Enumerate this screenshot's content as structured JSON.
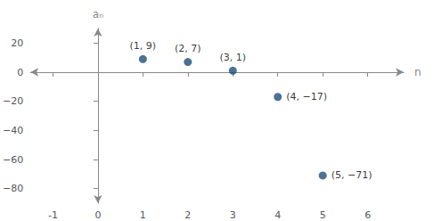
{
  "chart_data": {
    "type": "scatter",
    "x": [
      1,
      2,
      3,
      4,
      5
    ],
    "values": [
      9,
      7,
      1,
      -17,
      -71
    ],
    "value_labels": [
      "(1, 9)",
      "(2, 7)",
      "(3, 1)",
      "(4, −17)",
      "(5, −71)"
    ],
    "data_labels": true,
    "color": "#1f4e79",
    "xlabel": "n",
    "ylabel": "aₙ",
    "xlim": [
      -1.5,
      6.8
    ],
    "ylim": [
      -90,
      30
    ],
    "xticks": [
      -1,
      0,
      1,
      2,
      3,
      4,
      5,
      6
    ],
    "yticks": [
      20,
      0,
      {
        "value": -20,
        "label": "−20"
      },
      {
        "value": -40,
        "label": "−40"
      },
      {
        "value": -60,
        "label": "−60"
      },
      {
        "value": -80,
        "label": "−80"
      }
    ],
    "grid": false
  }
}
